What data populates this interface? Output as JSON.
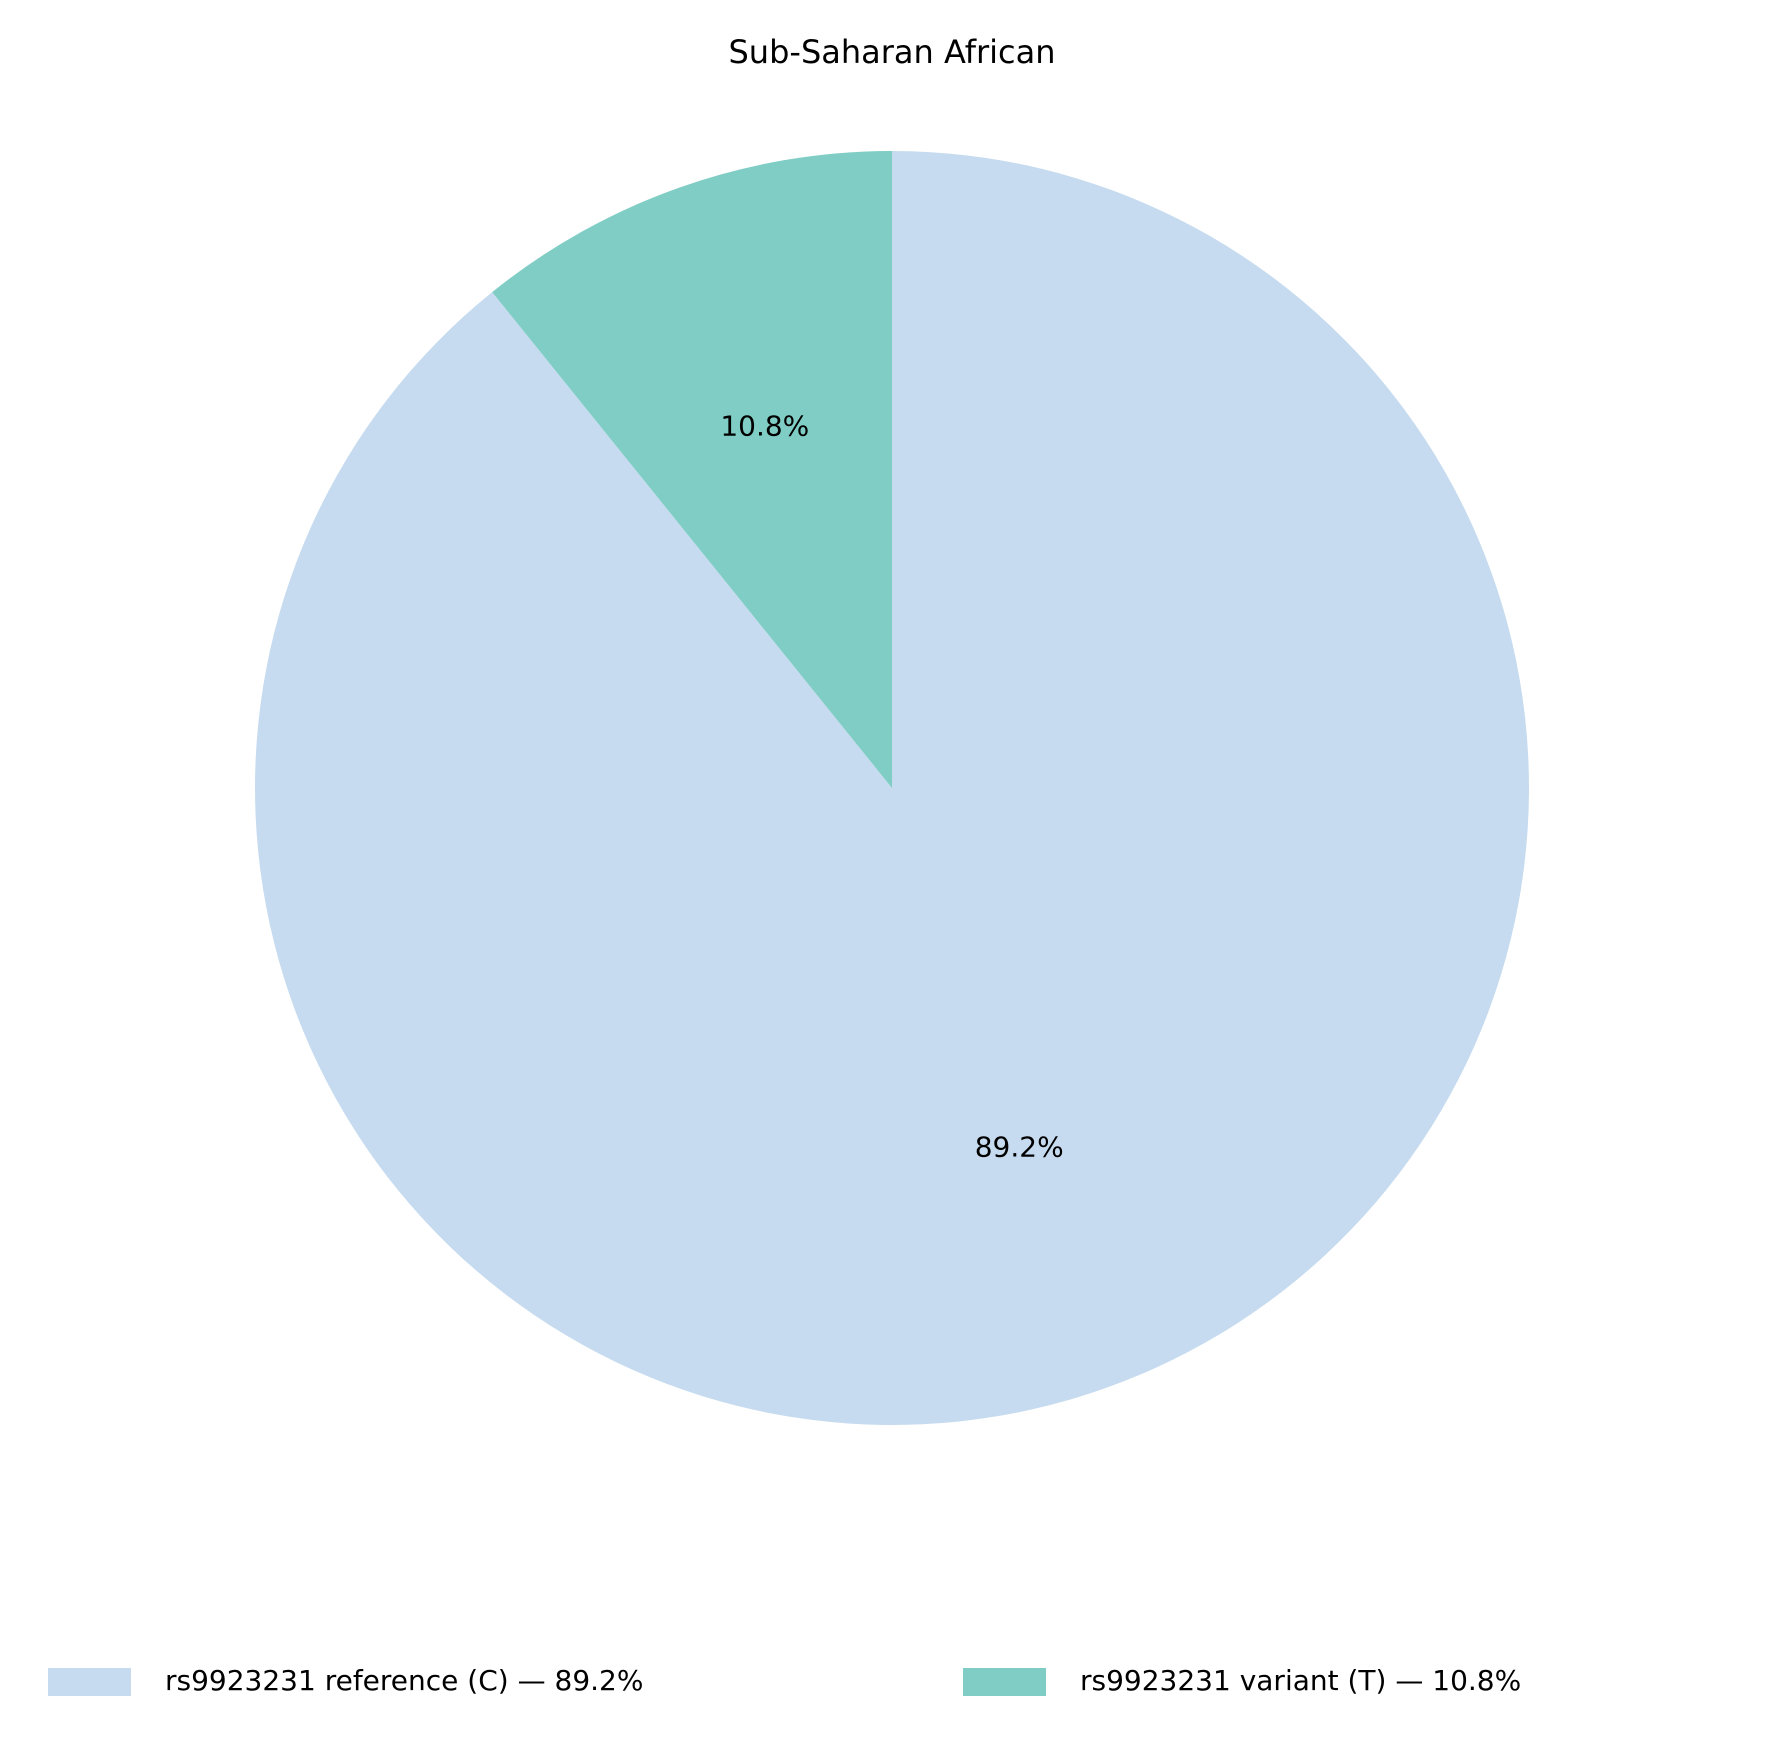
{
  "chart_data": {
    "type": "pie",
    "title": "Sub-Saharan African",
    "categories": [
      "rs9923231 reference (C) — 89.2%",
      "rs9923231 variant (T) — 10.8%"
    ],
    "values": [
      89.2,
      10.8
    ],
    "value_labels": [
      "89.2%",
      "10.8%"
    ],
    "colors": [
      "#c6dbef",
      "#7fcdc4"
    ],
    "legend": "bottom"
  }
}
